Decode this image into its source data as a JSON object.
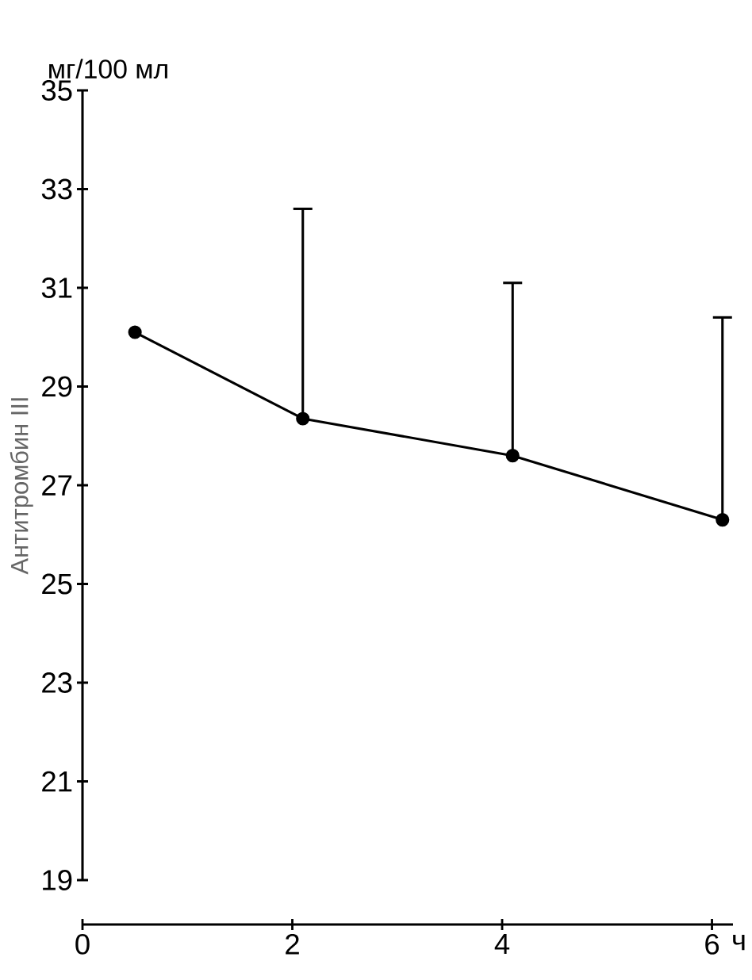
{
  "chart_data": {
    "type": "line",
    "ylabel": "Антитромбин III",
    "xlabel": "ч",
    "annotations": [
      "мг/100 мл"
    ],
    "x": [
      0.5,
      2.1,
      4.1,
      6.1
    ],
    "series": [
      {
        "color": "#000000",
        "values": [
          30.1,
          28.35,
          27.6,
          26.3
        ],
        "errors": [
          null,
          [
            28.35,
            32.6
          ],
          [
            27.6,
            31.1
          ],
          [
            26.3,
            30.4
          ]
        ]
      }
    ],
    "xlim": [
      0,
      6.2
    ],
    "xticks": [
      0,
      2,
      4,
      6
    ],
    "ylim": [
      19,
      35
    ],
    "yticks": [
      19,
      21,
      23,
      25,
      27,
      29,
      31,
      33,
      35
    ],
    "grid": false,
    "marker": "circle",
    "line_style": "solid"
  }
}
